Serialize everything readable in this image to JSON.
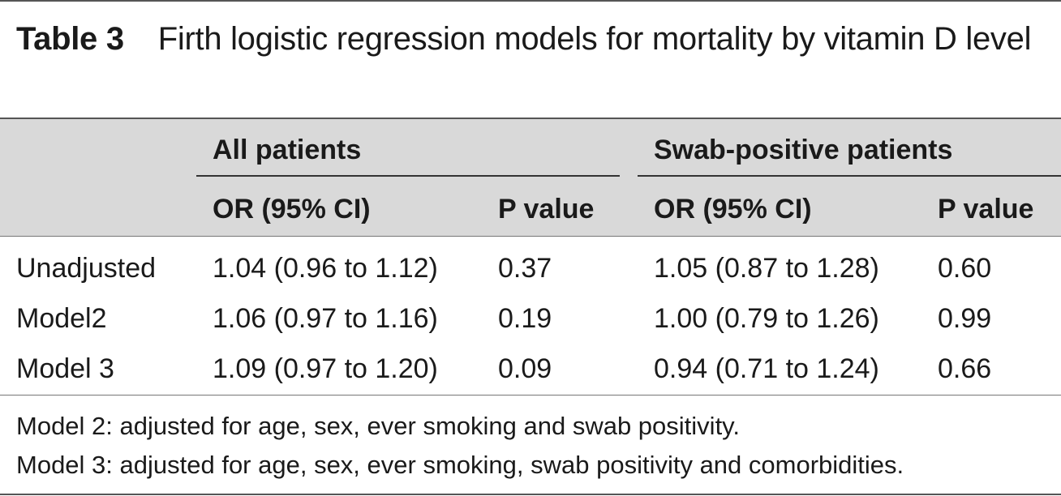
{
  "caption": {
    "label": "Table 3",
    "text": "Firth logistic regression models for mortality by vitamin D level"
  },
  "groups": [
    "All patients",
    "Swab-positive patients"
  ],
  "columns": [
    "OR (95% CI)",
    "P value",
    "OR (95% CI)",
    "P value"
  ],
  "rows": [
    {
      "label": "Unadjusted",
      "cells": [
        "1.04 (0.96 to 1.12)",
        "0.37",
        "1.05 (0.87 to 1.28)",
        "0.60"
      ]
    },
    {
      "label": "Model2",
      "cells": [
        "1.06 (0.97 to 1.16)",
        "0.19",
        "1.00 (0.79 to 1.26)",
        "0.99"
      ]
    },
    {
      "label": "Model 3",
      "cells": [
        "1.09 (0.97 to 1.20)",
        "0.09",
        "0.94 (0.71 to 1.24)",
        "0.66"
      ]
    }
  ],
  "footnotes": [
    "Model 2: adjusted for age, sex, ever smoking and swab positivity.",
    "Model 3: adjusted for age, sex, ever smoking, swab positivity and comorbidities."
  ]
}
